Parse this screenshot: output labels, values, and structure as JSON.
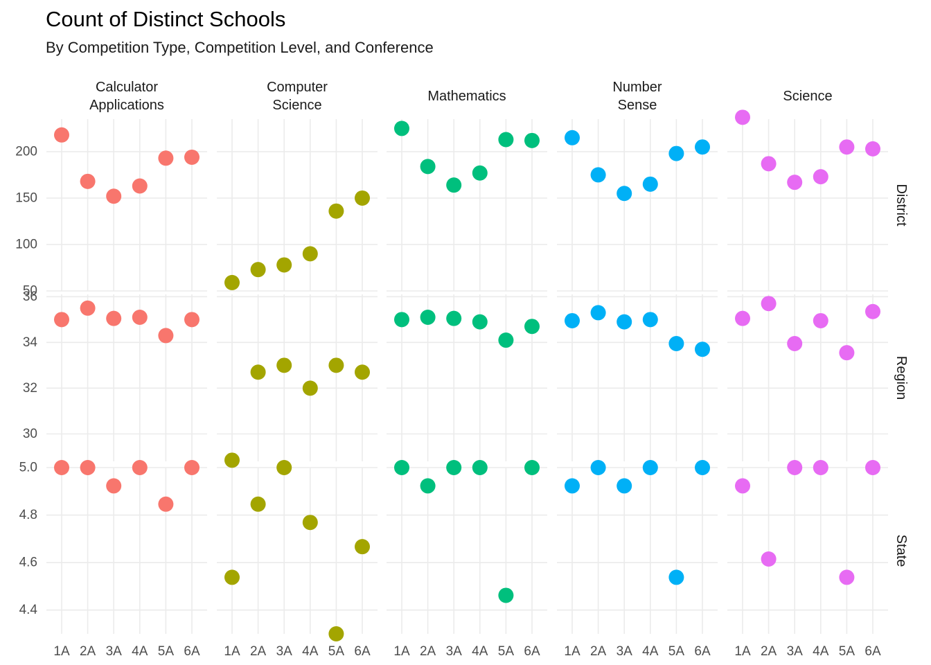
{
  "chart_data": {
    "type": "scatter",
    "title": "Count of Distinct Schools",
    "subtitle": "By Competition Type, Competition Level, and Conference",
    "xlabel": "",
    "ylabel": "",
    "grid": true,
    "legend": "none",
    "categories": [
      "1A",
      "2A",
      "3A",
      "4A",
      "5A",
      "6A"
    ],
    "columns": [
      {
        "name": "Calculator Applications",
        "lines": [
          "Calculator",
          "Applications"
        ],
        "color": "#F8766D"
      },
      {
        "name": "Computer Science",
        "lines": [
          "Computer",
          "Science"
        ],
        "color": "#A3A500"
      },
      {
        "name": "Mathematics",
        "lines": [
          "Mathematics"
        ],
        "color": "#00BF7D"
      },
      {
        "name": "Number Sense",
        "lines": [
          "Number",
          "Sense"
        ],
        "color": "#00B0F6"
      },
      {
        "name": "Science",
        "lines": [
          "Science"
        ],
        "color": "#E76BF3"
      }
    ],
    "rows": [
      {
        "name": "District",
        "ylim": [
          50,
          235
        ],
        "yticks": [
          50,
          100,
          150,
          200
        ],
        "ytick_labels": [
          "50",
          "100",
          "150",
          "200"
        ],
        "values": [
          [
            218,
            168,
            152,
            163,
            193,
            194
          ],
          [
            59,
            73,
            78,
            90,
            136,
            150
          ],
          [
            225,
            184,
            164,
            177,
            213,
            212
          ],
          [
            215,
            175,
            155,
            165,
            198,
            205
          ],
          [
            237,
            187,
            167,
            173,
            205,
            203
          ]
        ]
      },
      {
        "name": "Region",
        "ylim": [
          28.8,
          36.1
        ],
        "yticks": [
          30,
          32,
          34,
          36
        ],
        "ytick_labels": [
          "30",
          "32",
          "34",
          "36"
        ],
        "values": [
          [
            35,
            35.5,
            35.05,
            35.1,
            34.3,
            35
          ],
          [
            28.85,
            32.7,
            33,
            32,
            33,
            32.7
          ],
          [
            35,
            35.1,
            35.05,
            34.9,
            34.1,
            34.7
          ],
          [
            34.95,
            35.3,
            34.9,
            35,
            33.95,
            33.7
          ],
          [
            35.05,
            35.7,
            33.95,
            34.95,
            33.55,
            35.35
          ]
        ]
      },
      {
        "name": "State",
        "ylim": [
          4.3,
          5.0
        ],
        "yticks": [
          4.4,
          4.6,
          4.8,
          5.0
        ],
        "ytick_labels": [
          "4.4",
          "4.6",
          "4.8",
          "5.0"
        ],
        "values": [
          [
            5,
            5,
            4.923,
            5,
            4.846,
            5
          ],
          [
            4.538,
            4.846,
            5,
            4.769,
            4.3,
            4.667
          ],
          [
            5,
            4.923,
            5,
            5,
            4.462,
            5
          ],
          [
            4.923,
            5,
            4.923,
            5,
            4.538,
            5
          ],
          [
            4.923,
            4.615,
            5,
            5,
            4.538,
            5
          ]
        ]
      }
    ]
  }
}
